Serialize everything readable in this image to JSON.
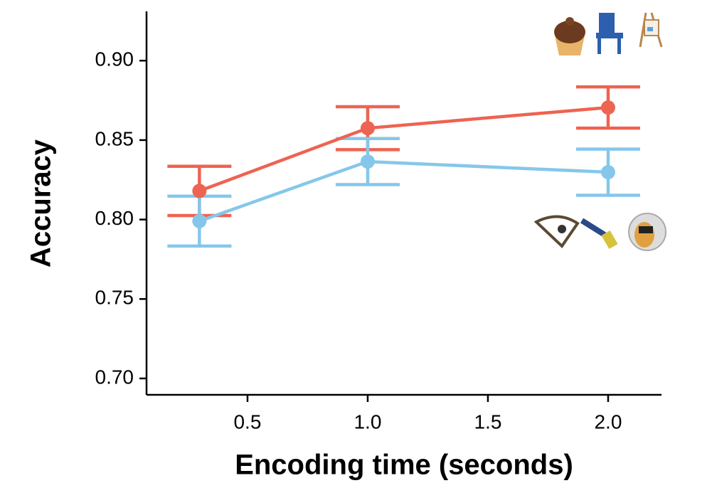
{
  "chart_data": {
    "type": "line",
    "xlabel": "Encoding time (seconds)",
    "ylabel": "Accuracy",
    "x": [
      0.3,
      1.0,
      2.0
    ],
    "series": [
      {
        "color": "#ee6352",
        "values": [
          0.818,
          0.8575,
          0.8705
        ],
        "errors": [
          0.0155,
          0.0135,
          0.013
        ]
      },
      {
        "color": "#85c7ea",
        "values": [
          0.799,
          0.8365,
          0.8298
        ],
        "errors": [
          0.0157,
          0.0145,
          0.0145
        ]
      }
    ],
    "xlim": [
      0.08,
      2.222
    ],
    "ylim": [
      0.6897,
      0.931
    ],
    "xticks": [
      0.5,
      {
        "value": 1.0,
        "label": "1.0"
      },
      1.5,
      {
        "value": 2.0,
        "label": "2.0"
      }
    ],
    "yticks": [
      {
        "value": 0.7,
        "label": "0.70"
      },
      0.75,
      {
        "value": 0.8,
        "label": "0.80"
      },
      0.85,
      {
        "value": 0.9,
        "label": "0.90"
      }
    ]
  }
}
